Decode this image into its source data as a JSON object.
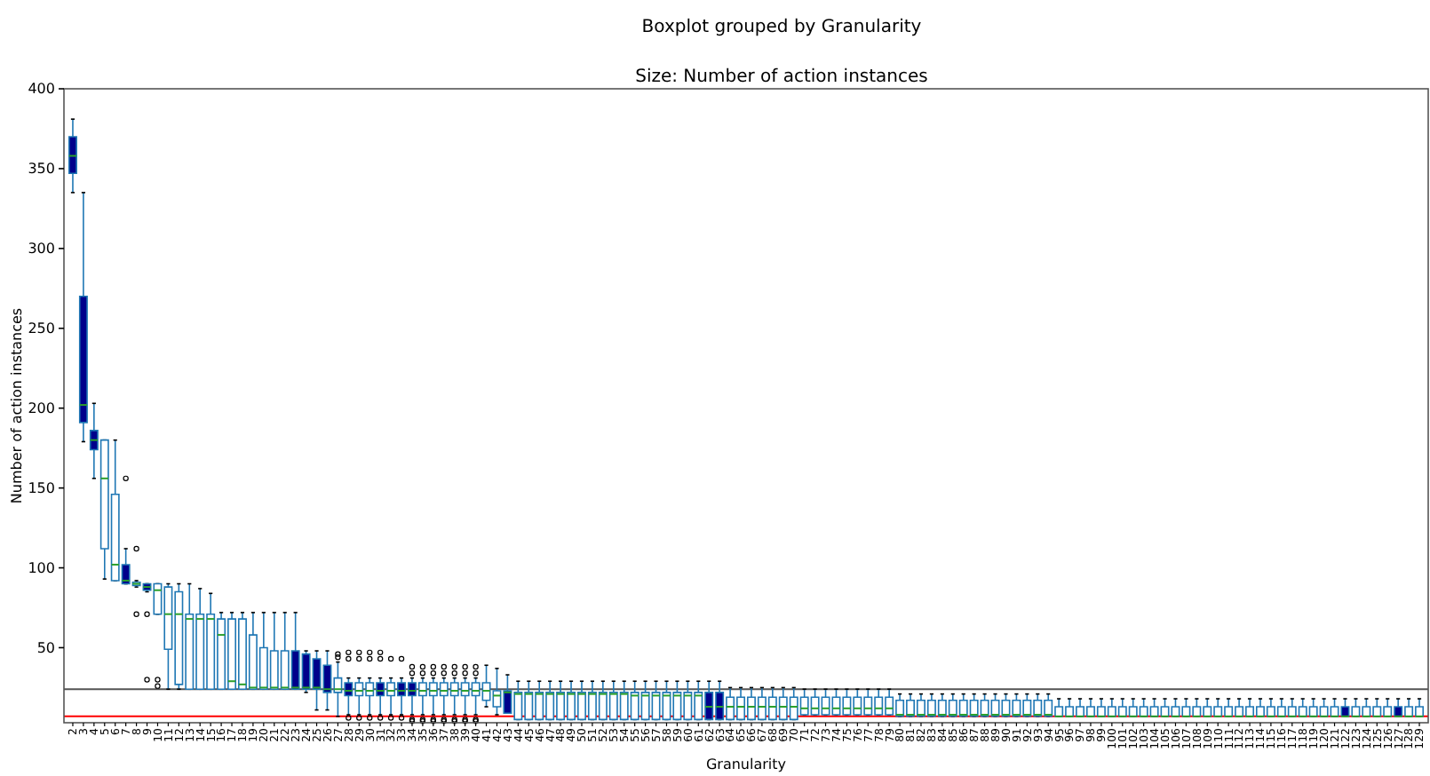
{
  "chart_data": {
    "type": "box",
    "title": "Boxplot grouped by Granularity",
    "subtitle": "Size: Number of action instances",
    "xlabel": "Granularity",
    "ylabel": "Number of action instances",
    "categories": [
      "2",
      "3",
      "4",
      "5",
      "6",
      "7",
      "8",
      "9",
      "10",
      "11",
      "12",
      "13",
      "14",
      "15",
      "16",
      "17",
      "18",
      "19",
      "20",
      "21",
      "22",
      "23",
      "24",
      "25",
      "26",
      "27",
      "28",
      "29",
      "30",
      "31",
      "32",
      "33",
      "34",
      "35",
      "36",
      "37",
      "38",
      "39",
      "40",
      "41",
      "42",
      "43",
      "44",
      "45",
      "46",
      "47",
      "48",
      "49",
      "50",
      "51",
      "52",
      "53",
      "54",
      "55",
      "56",
      "57",
      "58",
      "59",
      "60",
      "61",
      "62",
      "63",
      "64",
      "65",
      "66",
      "67",
      "68",
      "69",
      "70",
      "71",
      "72",
      "73",
      "74",
      "75",
      "76",
      "77",
      "78",
      "79",
      "80",
      "81",
      "82",
      "83",
      "84",
      "85",
      "86",
      "87",
      "88",
      "89",
      "90",
      "91",
      "92",
      "93",
      "94",
      "95",
      "96",
      "97",
      "98",
      "99",
      "100",
      "101",
      "102",
      "103",
      "104",
      "105",
      "106",
      "107",
      "108",
      "109",
      "110",
      "111",
      "112",
      "113",
      "114",
      "115",
      "116",
      "117",
      "118",
      "119",
      "120",
      "121",
      "122",
      "123",
      "124",
      "125",
      "126",
      "127",
      "128",
      "129"
    ],
    "ylim": [
      3,
      400
    ],
    "yticks": [
      50,
      100,
      150,
      200,
      250,
      300,
      350,
      400
    ],
    "ref_lines": [
      {
        "axis": "y",
        "value": 24,
        "color": "#555555"
      },
      {
        "axis": "y",
        "value": 7,
        "color": "#ff0000"
      }
    ],
    "colors": [
      "#00008b",
      "#00008b",
      "#00008b",
      "#ffffff",
      "#ffffff",
      "#00008b",
      "#ffffff",
      "#00008b",
      "#ffffff",
      "#ffffff",
      "#ffffff",
      "#ffffff",
      "#ffffff",
      "#ffffff",
      "#ffffff",
      "#ffffff",
      "#ffffff",
      "#ffffff",
      "#ffffff",
      "#ffffff",
      "#ffffff",
      "#00008b",
      "#00008b",
      "#00008b",
      "#00008b",
      "#ffffff",
      "#00008b",
      "#ffffff",
      "#ffffff",
      "#00008b",
      "#ffffff",
      "#00008b",
      "#00008b",
      "#ffffff",
      "#ffffff",
      "#ffffff",
      "#ffffff",
      "#ffffff",
      "#ffffff",
      "#ffffff",
      "#ffffff",
      "#00008b",
      "#ffffff",
      "#ffffff",
      "#ffffff",
      "#ffffff",
      "#ffffff",
      "#ffffff",
      "#ffffff",
      "#ffffff",
      "#ffffff",
      "#ffffff",
      "#ffffff",
      "#ffffff",
      "#ffffff",
      "#ffffff",
      "#ffffff",
      "#ffffff",
      "#ffffff",
      "#ffffff",
      "#00008b",
      "#00008b",
      "#ffffff",
      "#ffffff",
      "#ffffff",
      "#ffffff",
      "#ffffff",
      "#ffffff",
      "#ffffff",
      "#ffffff",
      "#ffffff",
      "#ffffff",
      "#ffffff",
      "#ffffff",
      "#ffffff",
      "#ffffff",
      "#ffffff",
      "#ffffff",
      "#ffffff",
      "#ffffff",
      "#ffffff",
      "#ffffff",
      "#ffffff",
      "#ffffff",
      "#ffffff",
      "#ffffff",
      "#ffffff",
      "#ffffff",
      "#ffffff",
      "#ffffff",
      "#ffffff",
      "#ffffff",
      "#ffffff",
      "#ffffff",
      "#ffffff",
      "#ffffff",
      "#ffffff",
      "#ffffff",
      "#ffffff",
      "#ffffff",
      "#ffffff",
      "#ffffff",
      "#ffffff",
      "#ffffff",
      "#ffffff",
      "#ffffff",
      "#ffffff",
      "#ffffff",
      "#ffffff",
      "#ffffff",
      "#ffffff",
      "#ffffff",
      "#ffffff",
      "#ffffff",
      "#ffffff",
      "#ffffff",
      "#ffffff",
      "#ffffff",
      "#ffffff",
      "#ffffff",
      "#00008b",
      "#ffffff",
      "#ffffff",
      "#ffffff",
      "#ffffff",
      "#00008b",
      "#ffffff",
      "#ffffff"
    ],
    "boxes": [
      {
        "low": 335,
        "q1": 347,
        "median": 358,
        "q3": 370,
        "high": 381
      },
      {
        "low": 179,
        "q1": 191,
        "median": 202,
        "q3": 270,
        "high": 335
      },
      {
        "low": 156,
        "q1": 174,
        "median": 180,
        "q3": 186,
        "high": 203
      },
      {
        "low": 93,
        "q1": 112,
        "median": 156,
        "q3": 180,
        "high": 180
      },
      {
        "low": 92,
        "q1": 92,
        "median": 102,
        "q3": 146,
        "high": 180
      },
      {
        "low": 90,
        "q1": 90,
        "median": 92,
        "q3": 102,
        "high": 112,
        "outliers": [
          156
        ]
      },
      {
        "low": 88,
        "q1": 89,
        "median": 90,
        "q3": 91,
        "high": 92,
        "outliers": [
          112,
          71
        ]
      },
      {
        "low": 85,
        "q1": 86,
        "median": 88,
        "q3": 90,
        "high": 90,
        "outliers": [
          71,
          30
        ]
      },
      {
        "low": 71,
        "q1": 71,
        "median": 86,
        "q3": 90,
        "high": 90,
        "outliers": [
          30,
          26
        ]
      },
      {
        "low": 24,
        "q1": 49,
        "median": 71,
        "q3": 88,
        "high": 90
      },
      {
        "low": 24,
        "q1": 27,
        "median": 71,
        "q3": 85,
        "high": 90
      },
      {
        "low": 24,
        "q1": 24,
        "median": 68,
        "q3": 71,
        "high": 90
      },
      {
        "low": 24,
        "q1": 24,
        "median": 68,
        "q3": 71,
        "high": 87
      },
      {
        "low": 24,
        "q1": 24,
        "median": 68,
        "q3": 71,
        "high": 84
      },
      {
        "low": 24,
        "q1": 24,
        "median": 58,
        "q3": 68,
        "high": 72
      },
      {
        "low": 24,
        "q1": 24,
        "median": 29,
        "q3": 68,
        "high": 72
      },
      {
        "low": 24,
        "q1": 24,
        "median": 27,
        "q3": 68,
        "high": 72
      },
      {
        "low": 24,
        "q1": 24,
        "median": 25,
        "q3": 58,
        "high": 72
      },
      {
        "low": 24,
        "q1": 24,
        "median": 25,
        "q3": 50,
        "high": 72
      },
      {
        "low": 24,
        "q1": 24,
        "median": 25,
        "q3": 48,
        "high": 72
      },
      {
        "low": 24,
        "q1": 24,
        "median": 25,
        "q3": 48,
        "high": 72
      },
      {
        "low": 24,
        "q1": 24,
        "median": 25,
        "q3": 48,
        "high": 72
      },
      {
        "low": 22,
        "q1": 24,
        "median": 25,
        "q3": 46,
        "high": 48
      },
      {
        "low": 11,
        "q1": 24,
        "median": 25,
        "q3": 43,
        "high": 48
      },
      {
        "low": 11,
        "q1": 22,
        "median": 24,
        "q3": 39,
        "high": 48
      },
      {
        "low": 7,
        "q1": 22,
        "median": 24,
        "q3": 31,
        "high": 41,
        "outliers": [
          46,
          44
        ]
      },
      {
        "low": 8,
        "q1": 20,
        "median": 23,
        "q3": 28,
        "high": 31,
        "outliers": [
          47,
          43,
          6
        ]
      },
      {
        "low": 8,
        "q1": 20,
        "median": 23,
        "q3": 28,
        "high": 31,
        "outliers": [
          47,
          43,
          6
        ]
      },
      {
        "low": 8,
        "q1": 20,
        "median": 23,
        "q3": 28,
        "high": 31,
        "outliers": [
          47,
          43,
          6
        ]
      },
      {
        "low": 8,
        "q1": 20,
        "median": 23,
        "q3": 28,
        "high": 31,
        "outliers": [
          47,
          43,
          6
        ]
      },
      {
        "low": 8,
        "q1": 20,
        "median": 23,
        "q3": 28,
        "high": 31,
        "outliers": [
          43,
          6
        ]
      },
      {
        "low": 8,
        "q1": 20,
        "median": 23,
        "q3": 28,
        "high": 31,
        "outliers": [
          43,
          6
        ]
      },
      {
        "low": 8,
        "q1": 20,
        "median": 23,
        "q3": 28,
        "high": 31,
        "outliers": [
          38,
          34,
          5,
          4
        ]
      },
      {
        "low": 8,
        "q1": 20,
        "median": 23,
        "q3": 28,
        "high": 31,
        "outliers": [
          38,
          34,
          5,
          4
        ]
      },
      {
        "low": 8,
        "q1": 20,
        "median": 23,
        "q3": 28,
        "high": 31,
        "outliers": [
          38,
          34,
          5,
          4
        ]
      },
      {
        "low": 8,
        "q1": 20,
        "median": 23,
        "q3": 28,
        "high": 31,
        "outliers": [
          38,
          34,
          5,
          4
        ]
      },
      {
        "low": 8,
        "q1": 20,
        "median": 23,
        "q3": 28,
        "high": 31,
        "outliers": [
          38,
          34,
          5,
          4
        ]
      },
      {
        "low": 8,
        "q1": 20,
        "median": 23,
        "q3": 28,
        "high": 31,
        "outliers": [
          38,
          34,
          5,
          4
        ]
      },
      {
        "low": 8,
        "q1": 20,
        "median": 23,
        "q3": 28,
        "high": 31,
        "outliers": [
          38,
          34,
          5,
          4
        ]
      },
      {
        "low": 13,
        "q1": 17,
        "median": 23,
        "q3": 28,
        "high": 39
      },
      {
        "low": 8,
        "q1": 13,
        "median": 20,
        "q3": 23,
        "high": 37
      },
      {
        "low": 9,
        "q1": 9,
        "median": 22,
        "q3": 23,
        "high": 33
      },
      {
        "low": 5,
        "q1": 5,
        "median": 21,
        "q3": 22,
        "high": 29
      },
      {
        "low": 5,
        "q1": 5,
        "median": 21,
        "q3": 22,
        "high": 29
      },
      {
        "low": 5,
        "q1": 5,
        "median": 21,
        "q3": 22,
        "high": 29
      },
      {
        "low": 5,
        "q1": 5,
        "median": 21,
        "q3": 22,
        "high": 29
      },
      {
        "low": 5,
        "q1": 5,
        "median": 21,
        "q3": 22,
        "high": 29
      },
      {
        "low": 5,
        "q1": 5,
        "median": 21,
        "q3": 22,
        "high": 29
      },
      {
        "low": 5,
        "q1": 5,
        "median": 21,
        "q3": 22,
        "high": 29
      },
      {
        "low": 5,
        "q1": 5,
        "median": 21,
        "q3": 22,
        "high": 29
      },
      {
        "low": 5,
        "q1": 5,
        "median": 21,
        "q3": 22,
        "high": 29
      },
      {
        "low": 5,
        "q1": 5,
        "median": 21,
        "q3": 22,
        "high": 29
      },
      {
        "low": 5,
        "q1": 5,
        "median": 21,
        "q3": 22,
        "high": 29
      },
      {
        "low": 5,
        "q1": 5,
        "median": 20,
        "q3": 22,
        "high": 29
      },
      {
        "low": 5,
        "q1": 5,
        "median": 20,
        "q3": 22,
        "high": 29
      },
      {
        "low": 5,
        "q1": 5,
        "median": 20,
        "q3": 22,
        "high": 29
      },
      {
        "low": 5,
        "q1": 5,
        "median": 20,
        "q3": 22,
        "high": 29
      },
      {
        "low": 5,
        "q1": 5,
        "median": 20,
        "q3": 22,
        "high": 29
      },
      {
        "low": 5,
        "q1": 5,
        "median": 20,
        "q3": 22,
        "high": 29
      },
      {
        "low": 5,
        "q1": 5,
        "median": 20,
        "q3": 22,
        "high": 29
      },
      {
        "low": 5,
        "q1": 5,
        "median": 13,
        "q3": 22,
        "high": 29
      },
      {
        "low": 5,
        "q1": 5,
        "median": 13,
        "q3": 22,
        "high": 29
      },
      {
        "low": 5,
        "q1": 5,
        "median": 13,
        "q3": 19,
        "high": 25
      },
      {
        "low": 5,
        "q1": 5,
        "median": 13,
        "q3": 19,
        "high": 25
      },
      {
        "low": 5,
        "q1": 5,
        "median": 13,
        "q3": 19,
        "high": 25
      },
      {
        "low": 5,
        "q1": 5,
        "median": 13,
        "q3": 19,
        "high": 25
      },
      {
        "low": 5,
        "q1": 5,
        "median": 13,
        "q3": 19,
        "high": 25
      },
      {
        "low": 5,
        "q1": 5,
        "median": 13,
        "q3": 19,
        "high": 25
      },
      {
        "low": 5,
        "q1": 5,
        "median": 13,
        "q3": 19,
        "high": 25
      },
      {
        "low": 8,
        "q1": 8,
        "median": 12,
        "q3": 19,
        "high": 24
      },
      {
        "low": 8,
        "q1": 8,
        "median": 12,
        "q3": 19,
        "high": 24
      },
      {
        "low": 8,
        "q1": 8,
        "median": 12,
        "q3": 19,
        "high": 24
      },
      {
        "low": 8,
        "q1": 8,
        "median": 12,
        "q3": 19,
        "high": 24
      },
      {
        "low": 8,
        "q1": 8,
        "median": 12,
        "q3": 19,
        "high": 24
      },
      {
        "low": 8,
        "q1": 8,
        "median": 12,
        "q3": 19,
        "high": 24
      },
      {
        "low": 8,
        "q1": 8,
        "median": 12,
        "q3": 19,
        "high": 24
      },
      {
        "low": 8,
        "q1": 8,
        "median": 12,
        "q3": 19,
        "high": 24
      },
      {
        "low": 8,
        "q1": 8,
        "median": 12,
        "q3": 19,
        "high": 24
      },
      {
        "low": 7,
        "q1": 7,
        "median": 8,
        "q3": 17,
        "high": 21
      },
      {
        "low": 7,
        "q1": 7,
        "median": 8,
        "q3": 17,
        "high": 21
      },
      {
        "low": 7,
        "q1": 7,
        "median": 8,
        "q3": 17,
        "high": 21
      },
      {
        "low": 7,
        "q1": 7,
        "median": 8,
        "q3": 17,
        "high": 21
      },
      {
        "low": 7,
        "q1": 7,
        "median": 8,
        "q3": 17,
        "high": 21
      },
      {
        "low": 7,
        "q1": 7,
        "median": 8,
        "q3": 17,
        "high": 21
      },
      {
        "low": 7,
        "q1": 7,
        "median": 8,
        "q3": 17,
        "high": 21
      },
      {
        "low": 7,
        "q1": 7,
        "median": 8,
        "q3": 17,
        "high": 21
      },
      {
        "low": 7,
        "q1": 7,
        "median": 8,
        "q3": 17,
        "high": 21
      },
      {
        "low": 7,
        "q1": 7,
        "median": 8,
        "q3": 17,
        "high": 21
      },
      {
        "low": 7,
        "q1": 7,
        "median": 8,
        "q3": 17,
        "high": 21
      },
      {
        "low": 7,
        "q1": 7,
        "median": 8,
        "q3": 17,
        "high": 21
      },
      {
        "low": 7,
        "q1": 7,
        "median": 8,
        "q3": 17,
        "high": 21
      },
      {
        "low": 7,
        "q1": 7,
        "median": 8,
        "q3": 17,
        "high": 21
      },
      {
        "low": 7,
        "q1": 7,
        "median": 8,
        "q3": 17,
        "high": 21
      },
      {
        "low": 7,
        "q1": 7,
        "median": 7,
        "q3": 13,
        "high": 18
      },
      {
        "low": 7,
        "q1": 7,
        "median": 7,
        "q3": 13,
        "high": 18
      },
      {
        "low": 7,
        "q1": 7,
        "median": 7,
        "q3": 13,
        "high": 18
      },
      {
        "low": 7,
        "q1": 7,
        "median": 7,
        "q3": 13,
        "high": 18
      },
      {
        "low": 7,
        "q1": 7,
        "median": 7,
        "q3": 13,
        "high": 18
      },
      {
        "low": 7,
        "q1": 7,
        "median": 7,
        "q3": 13,
        "high": 18
      },
      {
        "low": 7,
        "q1": 7,
        "median": 7,
        "q3": 13,
        "high": 18
      },
      {
        "low": 7,
        "q1": 7,
        "median": 7,
        "q3": 13,
        "high": 18
      },
      {
        "low": 7,
        "q1": 7,
        "median": 7,
        "q3": 13,
        "high": 18
      },
      {
        "low": 7,
        "q1": 7,
        "median": 7,
        "q3": 13,
        "high": 18
      },
      {
        "low": 7,
        "q1": 7,
        "median": 7,
        "q3": 13,
        "high": 18
      },
      {
        "low": 7,
        "q1": 7,
        "median": 7,
        "q3": 13,
        "high": 18
      },
      {
        "low": 7,
        "q1": 7,
        "median": 7,
        "q3": 13,
        "high": 18
      },
      {
        "low": 7,
        "q1": 7,
        "median": 7,
        "q3": 13,
        "high": 18
      },
      {
        "low": 7,
        "q1": 7,
        "median": 7,
        "q3": 13,
        "high": 18
      },
      {
        "low": 7,
        "q1": 7,
        "median": 7,
        "q3": 13,
        "high": 18
      },
      {
        "low": 7,
        "q1": 7,
        "median": 7,
        "q3": 13,
        "high": 18
      },
      {
        "low": 7,
        "q1": 7,
        "median": 7,
        "q3": 13,
        "high": 18
      },
      {
        "low": 7,
        "q1": 7,
        "median": 7,
        "q3": 13,
        "high": 18
      },
      {
        "low": 7,
        "q1": 7,
        "median": 7,
        "q3": 13,
        "high": 18
      },
      {
        "low": 7,
        "q1": 7,
        "median": 7,
        "q3": 13,
        "high": 18
      },
      {
        "low": 7,
        "q1": 7,
        "median": 7,
        "q3": 13,
        "high": 18
      },
      {
        "low": 7,
        "q1": 7,
        "median": 7,
        "q3": 13,
        "high": 18
      },
      {
        "low": 7,
        "q1": 7,
        "median": 7,
        "q3": 13,
        "high": 18
      },
      {
        "low": 7,
        "q1": 7,
        "median": 7,
        "q3": 13,
        "high": 18
      },
      {
        "low": 7,
        "q1": 7,
        "median": 7,
        "q3": 13,
        "high": 18
      },
      {
        "low": 7,
        "q1": 7,
        "median": 7,
        "q3": 13,
        "high": 18
      },
      {
        "low": 7,
        "q1": 7,
        "median": 7,
        "q3": 13,
        "high": 18
      },
      {
        "low": 7,
        "q1": 7,
        "median": 7,
        "q3": 13,
        "high": 18
      },
      {
        "low": 7,
        "q1": 7,
        "median": 7,
        "q3": 13,
        "high": 18
      },
      {
        "low": 7,
        "q1": 7,
        "median": 7,
        "q3": 13,
        "high": 18
      },
      {
        "low": 7,
        "q1": 7,
        "median": 7,
        "q3": 13,
        "high": 18
      },
      {
        "low": 7,
        "q1": 7,
        "median": 7,
        "q3": 13,
        "high": 18
      },
      {
        "low": 7,
        "q1": 7,
        "median": 7,
        "q3": 13,
        "high": 18
      },
      {
        "low": 7,
        "q1": 7,
        "median": 7,
        "q3": 13,
        "high": 18
      }
    ]
  }
}
